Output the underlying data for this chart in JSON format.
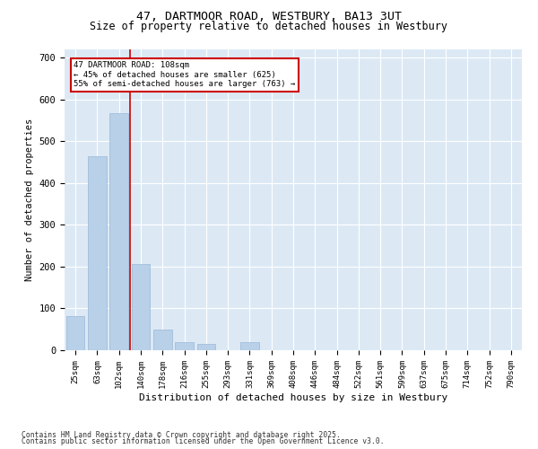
{
  "title_line1": "47, DARTMOOR ROAD, WESTBURY, BA13 3UT",
  "title_line2": "Size of property relative to detached houses in Westbury",
  "xlabel": "Distribution of detached houses by size in Westbury",
  "ylabel": "Number of detached properties",
  "categories": [
    "25sqm",
    "63sqm",
    "102sqm",
    "140sqm",
    "178sqm",
    "216sqm",
    "255sqm",
    "293sqm",
    "331sqm",
    "369sqm",
    "408sqm",
    "446sqm",
    "484sqm",
    "522sqm",
    "561sqm",
    "599sqm",
    "637sqm",
    "675sqm",
    "714sqm",
    "752sqm",
    "790sqm"
  ],
  "values": [
    82,
    465,
    568,
    207,
    50,
    20,
    15,
    0,
    19,
    0,
    0,
    0,
    0,
    0,
    0,
    0,
    0,
    0,
    0,
    0,
    0
  ],
  "bar_color": "#b8d0e8",
  "bar_edge_color": "#9ab8d8",
  "background_color": "#dce9f5",
  "grid_color": "#ffffff",
  "redline_x": 2.5,
  "annotation_text": "47 DARTMOOR ROAD: 108sqm\n← 45% of detached houses are smaller (625)\n55% of semi-detached houses are larger (763) →",
  "annotation_box_color": "#ffffff",
  "annotation_box_edge": "#cc0000",
  "annotation_text_size": 6.5,
  "ylim": [
    0,
    720
  ],
  "yticks": [
    0,
    100,
    200,
    300,
    400,
    500,
    600,
    700
  ],
  "footer_line1": "Contains HM Land Registry data © Crown copyright and database right 2025.",
  "footer_line2": "Contains public sector information licensed under the Open Government Licence v3.0."
}
